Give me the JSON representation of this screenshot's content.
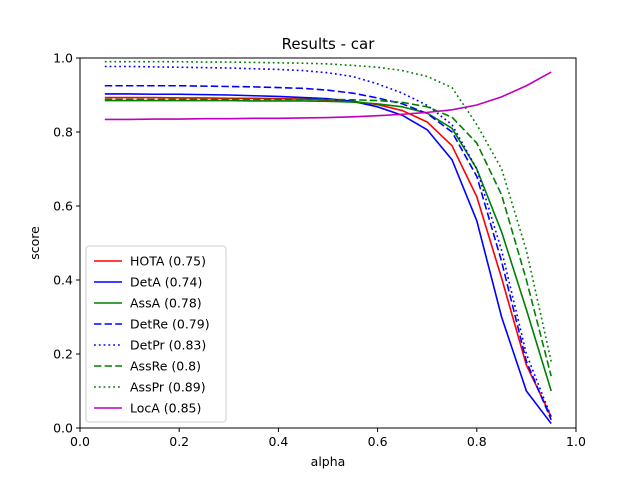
{
  "chart_data": {
    "type": "line",
    "title": "Results - car",
    "xlabel": "alpha",
    "ylabel": "score",
    "xlim": [
      0.0,
      1.0
    ],
    "ylim": [
      0.0,
      1.0
    ],
    "xticks": [
      "0.0",
      "0.2",
      "0.4",
      "0.6",
      "0.8",
      "1.0"
    ],
    "yticks": [
      "0.0",
      "0.2",
      "0.4",
      "0.6",
      "0.8",
      "1.0"
    ],
    "grid": false,
    "legend_position": "lower-left",
    "x": [
      0.05,
      0.1,
      0.15,
      0.2,
      0.25,
      0.3,
      0.35,
      0.4,
      0.45,
      0.5,
      0.55,
      0.6,
      0.65,
      0.7,
      0.75,
      0.8,
      0.85,
      0.9,
      0.95
    ],
    "series": [
      {
        "name": "HOTA (0.75)",
        "color": "#ff0000",
        "dash": "solid",
        "values": [
          0.893,
          0.893,
          0.893,
          0.892,
          0.892,
          0.891,
          0.891,
          0.89,
          0.889,
          0.887,
          0.883,
          0.874,
          0.858,
          0.827,
          0.763,
          0.625,
          0.405,
          0.17,
          0.03
        ]
      },
      {
        "name": "DetA (0.74)",
        "color": "#0000ff",
        "dash": "solid",
        "values": [
          0.903,
          0.903,
          0.902,
          0.902,
          0.901,
          0.9,
          0.898,
          0.896,
          0.893,
          0.89,
          0.883,
          0.868,
          0.845,
          0.806,
          0.725,
          0.56,
          0.3,
          0.1,
          0.012
        ]
      },
      {
        "name": "AssA (0.78)",
        "color": "#008000",
        "dash": "solid",
        "values": [
          0.885,
          0.885,
          0.885,
          0.885,
          0.885,
          0.885,
          0.884,
          0.884,
          0.884,
          0.883,
          0.881,
          0.876,
          0.868,
          0.851,
          0.81,
          0.7,
          0.53,
          0.32,
          0.1
        ]
      },
      {
        "name": "DetRe (0.79)",
        "color": "#0000ff",
        "dash": "dashed",
        "values": [
          0.925,
          0.925,
          0.925,
          0.925,
          0.924,
          0.923,
          0.922,
          0.92,
          0.918,
          0.913,
          0.905,
          0.892,
          0.876,
          0.85,
          0.8,
          0.68,
          0.45,
          0.18,
          0.022
        ]
      },
      {
        "name": "DetPr (0.83)",
        "color": "#0000ff",
        "dash": "dotted",
        "values": [
          0.977,
          0.977,
          0.976,
          0.975,
          0.974,
          0.973,
          0.971,
          0.969,
          0.966,
          0.96,
          0.95,
          0.93,
          0.905,
          0.872,
          0.82,
          0.7,
          0.48,
          0.2,
          0.03
        ]
      },
      {
        "name": "AssRe (0.8)",
        "color": "#008000",
        "dash": "dashed",
        "values": [
          0.888,
          0.888,
          0.888,
          0.888,
          0.888,
          0.888,
          0.888,
          0.888,
          0.888,
          0.888,
          0.887,
          0.885,
          0.88,
          0.868,
          0.84,
          0.77,
          0.63,
          0.4,
          0.14
        ]
      },
      {
        "name": "AssPr (0.89)",
        "color": "#008000",
        "dash": "dotted",
        "values": [
          0.99,
          0.99,
          0.99,
          0.99,
          0.989,
          0.989,
          0.988,
          0.987,
          0.986,
          0.984,
          0.98,
          0.975,
          0.966,
          0.95,
          0.92,
          0.82,
          0.7,
          0.48,
          0.18
        ]
      },
      {
        "name": "LocA (0.85)",
        "color": "#bf00bf",
        "dash": "solid",
        "values": [
          0.834,
          0.834,
          0.835,
          0.835,
          0.836,
          0.836,
          0.837,
          0.837,
          0.838,
          0.839,
          0.841,
          0.844,
          0.848,
          0.853,
          0.86,
          0.873,
          0.895,
          0.925,
          0.962
        ]
      }
    ]
  }
}
